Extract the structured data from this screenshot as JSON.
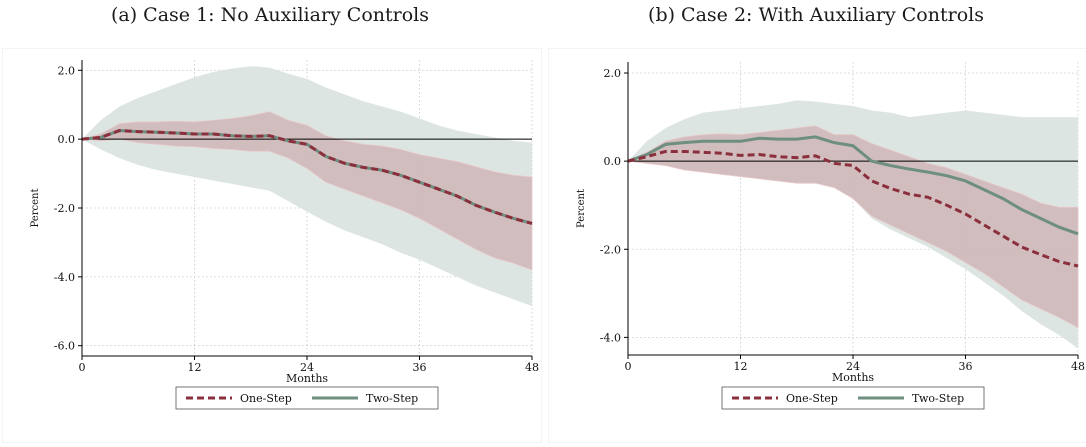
{
  "captions": {
    "a": "(a) Case 1: No Auxiliary Controls",
    "b": "(b) Case 2: With Auxiliary Controls"
  },
  "colors": {
    "one_step": "#8b2f3c",
    "two_step": "#6e8f80",
    "band_two_step": "#dbe4e0",
    "band_one_step": "#c9a1a5",
    "zero_line": "#000000"
  },
  "chart_data": [
    {
      "type": "line",
      "title": "(a) Case 1: No Auxiliary Controls",
      "xlabel": "Months",
      "ylabel": "Percent",
      "xlim": [
        0,
        48
      ],
      "ylim": [
        -6.3,
        2.3
      ],
      "xticks": [
        0,
        12,
        24,
        36,
        48
      ],
      "yticks": [
        2.0,
        0.0,
        -2.0,
        -4.0,
        -6.0
      ],
      "ytick_labels": [
        "2.0",
        "0.0",
        "-2.0",
        "-4.0",
        "-6.0"
      ],
      "grid": true,
      "legend": "bottom-center",
      "x": [
        0,
        2,
        4,
        6,
        8,
        10,
        12,
        14,
        16,
        18,
        20,
        22,
        24,
        26,
        28,
        30,
        32,
        34,
        36,
        38,
        40,
        42,
        44,
        46,
        48
      ],
      "series": [
        {
          "name": "One-Step",
          "style": "dashed",
          "values": [
            0.0,
            0.05,
            0.25,
            0.22,
            0.2,
            0.18,
            0.15,
            0.15,
            0.1,
            0.08,
            0.1,
            -0.05,
            -0.15,
            -0.5,
            -0.7,
            -0.82,
            -0.9,
            -1.05,
            -1.25,
            -1.45,
            -1.65,
            -1.92,
            -2.12,
            -2.3,
            -2.45
          ],
          "band": {
            "lower": [
              0.0,
              -0.05,
              0.0,
              -0.1,
              -0.15,
              -0.2,
              -0.22,
              -0.27,
              -0.3,
              -0.35,
              -0.35,
              -0.55,
              -0.85,
              -1.25,
              -1.45,
              -1.65,
              -1.85,
              -2.05,
              -2.3,
              -2.6,
              -2.9,
              -3.2,
              -3.45,
              -3.6,
              -3.8
            ],
            "upper": [
              0.0,
              0.15,
              0.45,
              0.5,
              0.5,
              0.52,
              0.5,
              0.55,
              0.6,
              0.68,
              0.8,
              0.55,
              0.4,
              0.1,
              -0.05,
              -0.15,
              -0.2,
              -0.3,
              -0.45,
              -0.55,
              -0.65,
              -0.8,
              -0.95,
              -1.05,
              -1.1
            ]
          }
        },
        {
          "name": "Two-Step",
          "style": "solid",
          "values": [
            0.0,
            0.05,
            0.25,
            0.22,
            0.2,
            0.18,
            0.15,
            0.15,
            0.1,
            0.08,
            0.1,
            -0.05,
            -0.15,
            -0.5,
            -0.7,
            -0.82,
            -0.9,
            -1.05,
            -1.25,
            -1.45,
            -1.65,
            -1.92,
            -2.12,
            -2.3,
            -2.45
          ],
          "band": {
            "lower": [
              0.0,
              -0.3,
              -0.55,
              -0.75,
              -0.9,
              -1.0,
              -1.1,
              -1.2,
              -1.3,
              -1.4,
              -1.5,
              -1.8,
              -2.1,
              -2.4,
              -2.65,
              -2.85,
              -3.05,
              -3.3,
              -3.5,
              -3.75,
              -4.0,
              -4.25,
              -4.45,
              -4.65,
              -4.85
            ],
            "upper": [
              0.0,
              0.55,
              0.95,
              1.2,
              1.4,
              1.6,
              1.8,
              1.95,
              2.05,
              2.12,
              2.08,
              1.9,
              1.75,
              1.5,
              1.3,
              1.1,
              0.95,
              0.8,
              0.6,
              0.4,
              0.25,
              0.15,
              0.05,
              -0.05,
              -0.1
            ]
          }
        }
      ]
    },
    {
      "type": "line",
      "title": "(b) Case 2: With Auxiliary Controls",
      "xlabel": "Months",
      "ylabel": "Percent",
      "xlim": [
        0,
        48
      ],
      "ylim": [
        -4.4,
        2.25
      ],
      "xticks": [
        0,
        12,
        24,
        36,
        48
      ],
      "yticks": [
        2.0,
        0.0,
        -2.0,
        -4.0
      ],
      "ytick_labels": [
        "2.0",
        "0.0",
        "-2.0",
        "-4.0"
      ],
      "grid": true,
      "legend": "bottom-center",
      "x": [
        0,
        2,
        4,
        6,
        8,
        10,
        12,
        14,
        16,
        18,
        20,
        22,
        24,
        26,
        28,
        30,
        32,
        34,
        36,
        38,
        40,
        42,
        44,
        46,
        48
      ],
      "series": [
        {
          "name": "One-Step",
          "style": "dashed",
          "values": [
            0.0,
            0.1,
            0.22,
            0.22,
            0.2,
            0.18,
            0.13,
            0.15,
            0.1,
            0.08,
            0.12,
            -0.05,
            -0.1,
            -0.45,
            -0.62,
            -0.75,
            -0.82,
            -1.0,
            -1.2,
            -1.45,
            -1.7,
            -1.95,
            -2.12,
            -2.28,
            -2.38
          ],
          "band": {
            "lower": [
              0.0,
              -0.05,
              -0.1,
              -0.2,
              -0.25,
              -0.3,
              -0.35,
              -0.4,
              -0.45,
              -0.5,
              -0.5,
              -0.6,
              -0.85,
              -1.25,
              -1.45,
              -1.65,
              -1.85,
              -2.05,
              -2.3,
              -2.55,
              -2.85,
              -3.15,
              -3.35,
              -3.55,
              -3.78
            ],
            "upper": [
              0.0,
              0.2,
              0.45,
              0.55,
              0.6,
              0.62,
              0.6,
              0.65,
              0.7,
              0.75,
              0.8,
              0.6,
              0.6,
              0.4,
              0.25,
              0.1,
              -0.05,
              -0.15,
              -0.3,
              -0.45,
              -0.6,
              -0.75,
              -0.95,
              -1.05,
              -1.05
            ]
          }
        },
        {
          "name": "Two-Step",
          "style": "solid",
          "values": [
            0.0,
            0.15,
            0.38,
            0.42,
            0.45,
            0.45,
            0.45,
            0.52,
            0.5,
            0.5,
            0.55,
            0.42,
            0.35,
            0.0,
            -0.1,
            -0.18,
            -0.25,
            -0.33,
            -0.45,
            -0.65,
            -0.85,
            -1.1,
            -1.3,
            -1.5,
            -1.65
          ],
          "band": {
            "lower": [
              0.0,
              -0.05,
              -0.1,
              -0.2,
              -0.25,
              -0.3,
              -0.35,
              -0.4,
              -0.45,
              -0.5,
              -0.5,
              -0.6,
              -0.85,
              -1.3,
              -1.55,
              -1.75,
              -1.95,
              -2.2,
              -2.45,
              -2.75,
              -3.05,
              -3.4,
              -3.7,
              -3.95,
              -4.25
            ],
            "upper": [
              0.0,
              0.45,
              0.75,
              0.95,
              1.1,
              1.15,
              1.2,
              1.25,
              1.3,
              1.38,
              1.35,
              1.3,
              1.25,
              1.15,
              1.1,
              1.0,
              1.05,
              1.1,
              1.15,
              1.1,
              1.05,
              1.0,
              1.0,
              1.0,
              1.0
            ]
          }
        }
      ]
    }
  ]
}
